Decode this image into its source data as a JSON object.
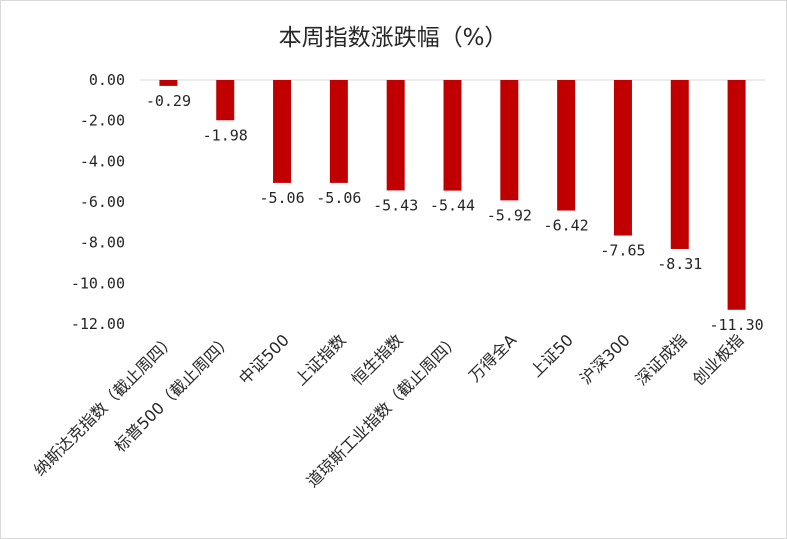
{
  "chart_data": {
    "type": "bar",
    "title": "本周指数涨跌幅（%）",
    "categories": [
      "纳斯达克指数（截止周四）",
      "标普500（截止周四）",
      "中证500",
      "上证指数",
      "恒生指数",
      "道琼斯工业指数（截止周四）",
      "万得全A",
      "上证50",
      "沪深300",
      "深证成指",
      "创业板指"
    ],
    "values": [
      -0.29,
      -1.98,
      -5.06,
      -5.06,
      -5.43,
      -5.44,
      -5.92,
      -6.42,
      -7.65,
      -8.31,
      -11.3
    ],
    "data_labels": [
      "-0.29",
      "-1.98",
      "-5.06",
      "-5.06",
      "-5.43",
      "-5.44",
      "-5.92",
      "-6.42",
      "-7.65",
      "-8.31",
      "-11.30"
    ],
    "yticks": [
      "0.00",
      "-2.00",
      "-4.00",
      "-6.00",
      "-8.00",
      "-10.00",
      "-12.00"
    ],
    "ylim": [
      -12,
      0
    ],
    "xlabel": "",
    "ylabel": "",
    "grid": false,
    "bar_color": "#c00000"
  }
}
